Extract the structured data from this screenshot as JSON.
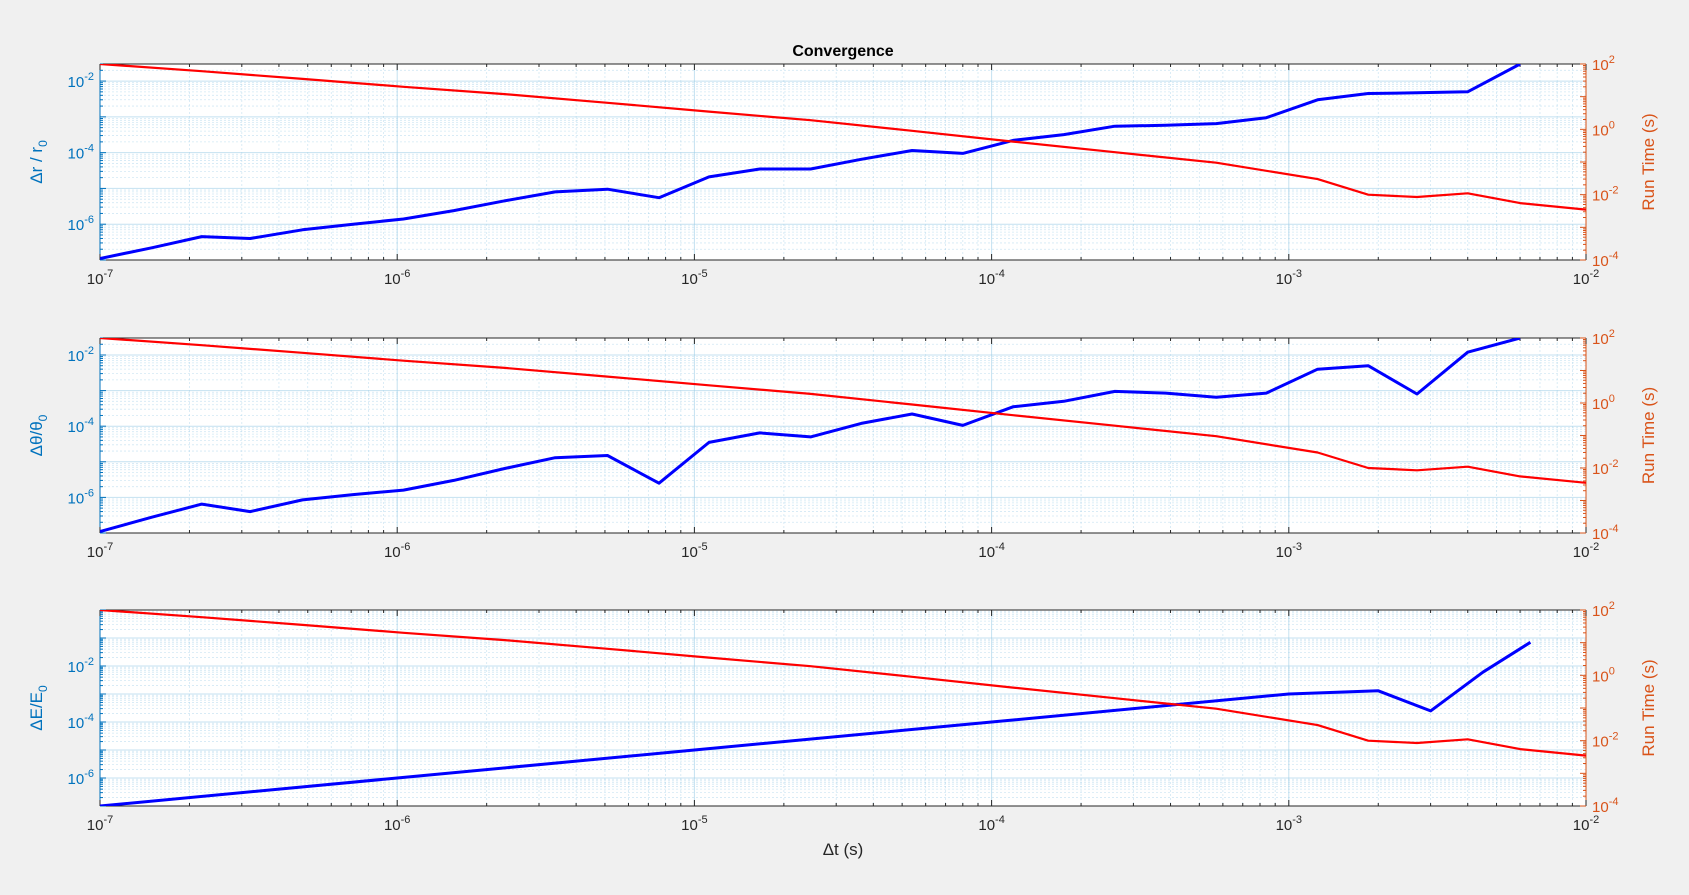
{
  "figure": {
    "title": "Convergence"
  },
  "colors": {
    "left_axis": "#0072BD",
    "right_axis": "#D95319",
    "error_line": "#0000FF",
    "runtime_line": "#FF0000",
    "grid": "#9ccde6",
    "axes_bg": "#ffffff",
    "figure_bg": "#f0f0f0"
  },
  "chart_data": [
    {
      "type": "line",
      "title": "Convergence",
      "xlabel": "",
      "x_scale": "log",
      "xlim": [
        1e-07,
        0.01
      ],
      "x_ticks": [
        "10^-7",
        "10^-6",
        "10^-5",
        "10^-4",
        "10^-3",
        "10^-2"
      ],
      "ylabel_left": {
        "base": "Δr / r",
        "sub": "0",
        "sup": ""
      },
      "y_left_scale": "log",
      "y_left_lim": [
        1e-07,
        0.03
      ],
      "y_left_ticks": [
        "10^-6",
        "10^-4",
        "10^-2"
      ],
      "ylabel_right": "Run Time (s)",
      "y_right_scale": "log",
      "y_right_lim": [
        0.0001,
        100
      ],
      "y_right_ticks": [
        "10^-4",
        "10^-2",
        "10^0",
        "10^2"
      ],
      "grid": "on",
      "series": [
        {
          "axis": "left",
          "x": [
            1e-07,
            1.5e-07,
            2.2e-07,
            3.2e-07,
            4.8e-07,
            7.1e-07,
            1.05e-06,
            1.55e-06,
            2.3e-06,
            3.4e-06,
            5.1e-06,
            7.6e-06,
            1.12e-05,
            1.66e-05,
            2.46e-05,
            3.64e-05,
            5.4e-05,
            8e-05,
            0.000118,
            0.000175,
            0.00026,
            0.000385,
            0.00057,
            0.00084,
            0.00125,
            0.00185,
            0.0027,
            0.004,
            0.006
          ],
          "y": [
            1.1e-07,
            2.2e-07,
            4.5e-07,
            4e-07,
            7e-07,
            1e-06,
            1.4e-06,
            2.4e-06,
            4.5e-06,
            8e-06,
            9.5e-06,
            5.5e-06,
            2.1e-05,
            3.5e-05,
            3.5e-05,
            6.5e-05,
            0.000115,
            9.5e-05,
            0.00022,
            0.00032,
            0.00055,
            0.00058,
            0.00065,
            0.00095,
            0.003,
            0.0045,
            0.0047,
            0.005,
            0.03
          ]
        },
        {
          "axis": "right",
          "x": [
            1e-07,
            2.2e-07,
            4.8e-07,
            1.05e-06,
            2.3e-06,
            5.1e-06,
            1.12e-05,
            2.46e-05,
            5.4e-05,
            0.000118,
            0.00026,
            0.00057,
            0.00125,
            0.00185,
            0.0027,
            0.004,
            0.006,
            0.01
          ],
          "y": [
            100,
            60,
            35,
            20,
            12,
            6.5,
            3.5,
            1.9,
            0.9,
            0.42,
            0.2,
            0.095,
            0.03,
            0.01,
            0.0085,
            0.011,
            0.0055,
            0.0035
          ]
        }
      ]
    },
    {
      "type": "line",
      "title": "",
      "xlabel": "",
      "x_scale": "log",
      "xlim": [
        1e-07,
        0.01
      ],
      "x_ticks": [
        "10^-7",
        "10^-6",
        "10^-5",
        "10^-4",
        "10^-3",
        "10^-2"
      ],
      "ylabel_left": {
        "base": "Δθ/θ",
        "sub": "0",
        "sup": ""
      },
      "y_left_scale": "log",
      "y_left_lim": [
        1e-07,
        0.03
      ],
      "y_left_ticks": [
        "10^-6",
        "10^-4",
        "10^-2"
      ],
      "ylabel_right": "Run Time (s)",
      "y_right_scale": "log",
      "y_right_lim": [
        0.0001,
        100
      ],
      "y_right_ticks": [
        "10^-4",
        "10^-2",
        "10^0",
        "10^2"
      ],
      "grid": "on",
      "series": [
        {
          "axis": "left",
          "x": [
            1e-07,
            1.5e-07,
            2.2e-07,
            3.2e-07,
            4.8e-07,
            7.1e-07,
            1.05e-06,
            1.55e-06,
            2.3e-06,
            3.4e-06,
            5.1e-06,
            7.6e-06,
            1.12e-05,
            1.66e-05,
            2.46e-05,
            3.64e-05,
            5.4e-05,
            8e-05,
            0.000118,
            0.000175,
            0.00026,
            0.000385,
            0.00057,
            0.00084,
            0.00125,
            0.00185,
            0.0027,
            0.004,
            0.006
          ],
          "y": [
            1.1e-07,
            2.8e-07,
            6.5e-07,
            4e-07,
            8.5e-07,
            1.2e-06,
            1.6e-06,
            3e-06,
            6.5e-06,
            1.3e-05,
            1.5e-05,
            2.5e-06,
            3.5e-05,
            6.5e-05,
            5e-05,
            0.00012,
            0.00022,
            0.000105,
            0.00035,
            0.0005,
            0.00095,
            0.00085,
            0.00065,
            0.00085,
            0.004,
            0.005,
            0.0008,
            0.012,
            0.03
          ]
        },
        {
          "axis": "right",
          "x": [
            1e-07,
            2.2e-07,
            4.8e-07,
            1.05e-06,
            2.3e-06,
            5.1e-06,
            1.12e-05,
            2.46e-05,
            5.4e-05,
            0.000118,
            0.00026,
            0.00057,
            0.00125,
            0.00185,
            0.0027,
            0.004,
            0.006,
            0.01
          ],
          "y": [
            100,
            60,
            35,
            20,
            12,
            6.5,
            3.5,
            1.9,
            0.9,
            0.42,
            0.2,
            0.095,
            0.03,
            0.01,
            0.0085,
            0.011,
            0.0055,
            0.0035
          ]
        }
      ]
    },
    {
      "type": "line",
      "title": "",
      "xlabel": "Δt (s)",
      "x_scale": "log",
      "xlim": [
        1e-07,
        0.01
      ],
      "x_ticks": [
        "10^-7",
        "10^-6",
        "10^-5",
        "10^-4",
        "10^-3",
        "10^-2"
      ],
      "ylabel_left": {
        "base": "ΔE/E",
        "sub": "0",
        "sup": ""
      },
      "y_left_scale": "log",
      "y_left_lim": [
        1e-07,
        1
      ],
      "y_left_ticks": [
        "10^-6",
        "10^-4",
        "10^-2"
      ],
      "ylabel_right": "Run Time (s)",
      "y_right_scale": "log",
      "y_right_lim": [
        0.0001,
        100
      ],
      "y_right_ticks": [
        "10^-4",
        "10^-2",
        "10^0",
        "10^2"
      ],
      "grid": "on",
      "series": [
        {
          "axis": "left",
          "x": [
            1e-07,
            1e-06,
            1e-05,
            0.0001,
            0.001,
            0.002,
            0.003,
            0.0045,
            0.0065
          ],
          "y": [
            1e-07,
            1e-06,
            1e-05,
            0.0001,
            0.001,
            0.0013,
            0.00025,
            0.006,
            0.07
          ]
        },
        {
          "axis": "right",
          "x": [
            1e-07,
            2.2e-07,
            4.8e-07,
            1.05e-06,
            2.3e-06,
            5.1e-06,
            1.12e-05,
            2.46e-05,
            5.4e-05,
            0.000118,
            0.00026,
            0.00057,
            0.00125,
            0.00185,
            0.0027,
            0.004,
            0.006,
            0.01
          ],
          "y": [
            100,
            60,
            35,
            20,
            12,
            6.5,
            3.5,
            1.9,
            0.9,
            0.42,
            0.2,
            0.095,
            0.03,
            0.01,
            0.0085,
            0.011,
            0.0055,
            0.0035
          ]
        }
      ]
    }
  ]
}
